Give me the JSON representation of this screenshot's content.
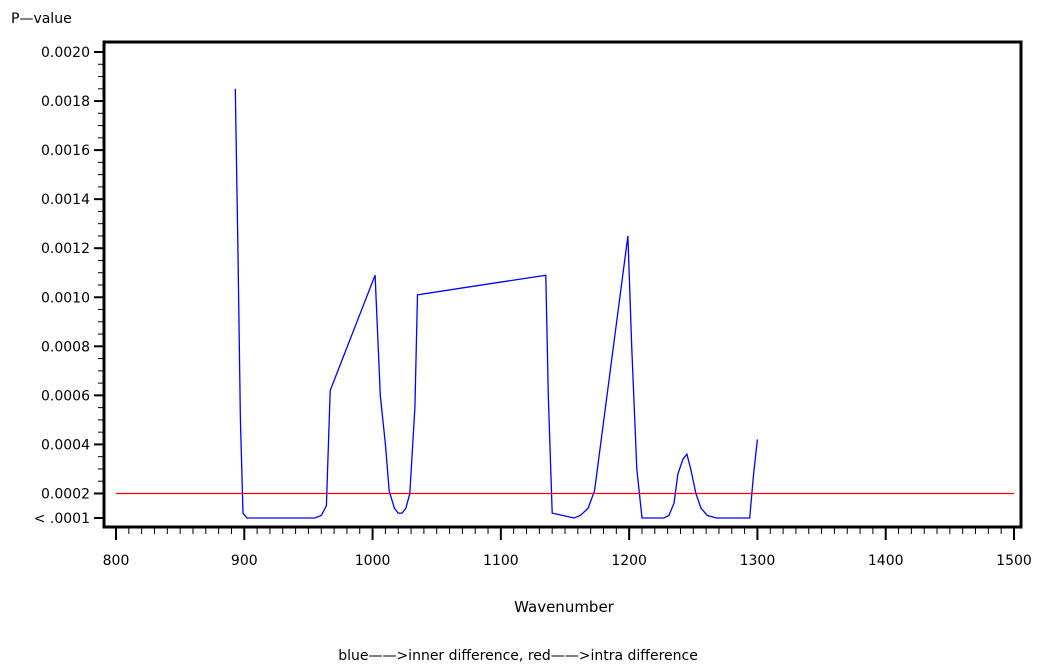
{
  "chart_data": {
    "type": "line",
    "title": "",
    "xlabel": "Wavenumber",
    "ylabel": "P—value",
    "footnote": "blue——>inner difference, red——>intra difference",
    "xlim": [
      800,
      1500
    ],
    "ylim": [
      0.0001,
      0.002
    ],
    "x_ticks": [
      800,
      900,
      1000,
      1100,
      1200,
      1300,
      1400,
      1500
    ],
    "y_ticks": [
      {
        "value": 0.0001,
        "label": "< .0001"
      },
      {
        "value": 0.0002,
        "label": "0.0002"
      },
      {
        "value": 0.0004,
        "label": "0.0004"
      },
      {
        "value": 0.0006,
        "label": "0.0006"
      },
      {
        "value": 0.0008,
        "label": "0.0008"
      },
      {
        "value": 0.001,
        "label": "0.0010"
      },
      {
        "value": 0.0012,
        "label": "0.0012"
      },
      {
        "value": 0.0014,
        "label": "0.0014"
      },
      {
        "value": 0.0016,
        "label": "0.0016"
      },
      {
        "value": 0.0018,
        "label": "0.0018"
      },
      {
        "value": 0.002,
        "label": "0.0020"
      }
    ],
    "series": [
      {
        "color": "#0000ff",
        "x": [
          893,
          895,
          897,
          899,
          902,
          955,
          960,
          964,
          967,
          1002,
          1006,
          1010,
          1013,
          1017,
          1020,
          1023,
          1026,
          1029,
          1033,
          1035,
          1135,
          1137,
          1140,
          1157,
          1162,
          1168,
          1173,
          1199,
          1202,
          1206,
          1210,
          1227,
          1231,
          1235,
          1238,
          1242,
          1245,
          1248,
          1252,
          1256,
          1261,
          1268,
          1294,
          1297,
          1300
        ],
        "y": [
          0.00185,
          0.0012,
          0.0005,
          0.00012,
          0.0001,
          0.0001,
          0.00011,
          0.00015,
          0.00062,
          0.00109,
          0.0006,
          0.0004,
          0.00021,
          0.00014,
          0.00012,
          0.00012,
          0.00014,
          0.0002,
          0.00055,
          0.00101,
          0.00109,
          0.0006,
          0.00012,
          0.0001,
          0.00011,
          0.00014,
          0.00021,
          0.00125,
          0.0008,
          0.0003,
          0.0001,
          0.0001,
          0.00011,
          0.00016,
          0.00028,
          0.00034,
          0.00036,
          0.0003,
          0.0002,
          0.00014,
          0.00011,
          0.0001,
          0.0001,
          0.00028,
          0.00042
        ]
      },
      {
        "color": "#ff0000",
        "x": [
          800,
          1500
        ],
        "y": [
          0.0002,
          0.0002
        ]
      }
    ],
    "grid": false,
    "legend": "none"
  }
}
